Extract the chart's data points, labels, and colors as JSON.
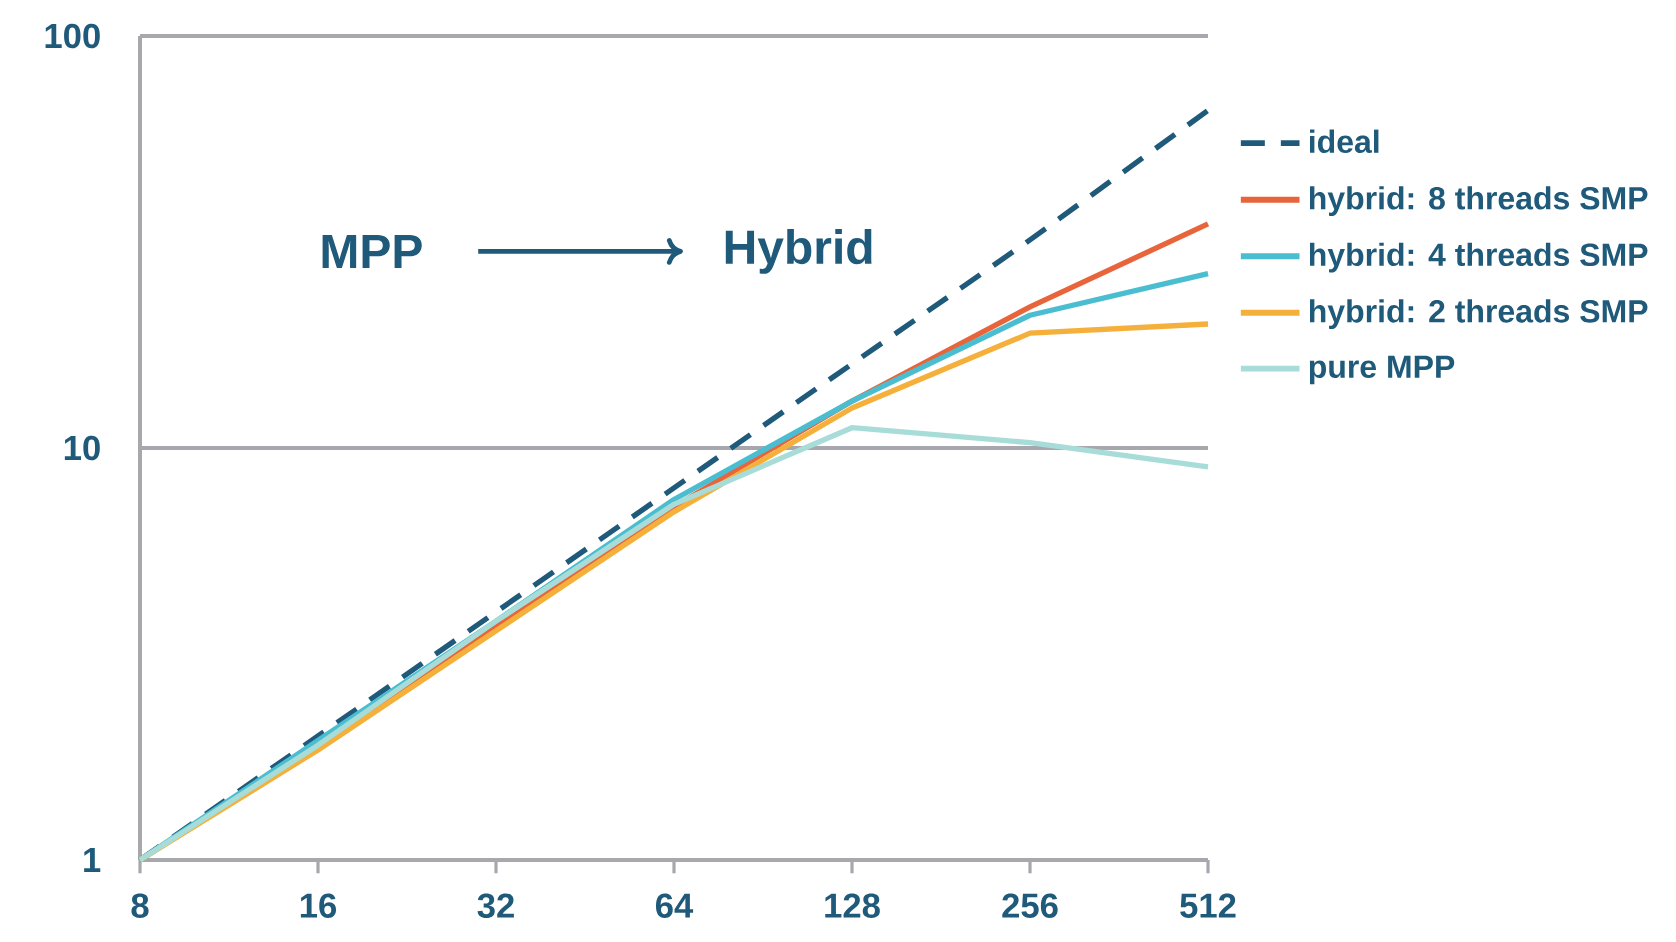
{
  "chart_data": {
    "type": "line",
    "categories": [
      "8",
      "16",
      "32",
      "64",
      "128",
      "256",
      "512"
    ],
    "log": "y",
    "ylim": [
      1,
      100
    ],
    "yticks": [
      1,
      10,
      100
    ],
    "grid": "y",
    "legend": "right",
    "annotations": [
      "MPP",
      "Hybrid"
    ],
    "series": [
      {
        "name": "ideal",
        "color": "#1f5a7a",
        "line_style": "dashed",
        "values": [
          1,
          2,
          4,
          8,
          16,
          32,
          66
        ]
      },
      {
        "name": "hybrid: 8 threads SMP",
        "color": "#e8643a",
        "values": [
          1,
          1.9,
          3.7,
          7.2,
          13,
          22,
          35
        ]
      },
      {
        "name": "hybrid: 4 threads SMP",
        "color": "#4bbdd0",
        "values": [
          1,
          1.95,
          3.8,
          7.5,
          13,
          21,
          26.5
        ]
      },
      {
        "name": "hybrid: 2 threads SMP",
        "color": "#f4b03a",
        "values": [
          1,
          1.85,
          3.6,
          7,
          12.5,
          19,
          20
        ]
      },
      {
        "name": "pure MPP",
        "color": "#a8dcd8",
        "values": [
          1,
          1.9,
          3.8,
          7.3,
          11.2,
          10.3,
          9
        ]
      }
    ]
  }
}
